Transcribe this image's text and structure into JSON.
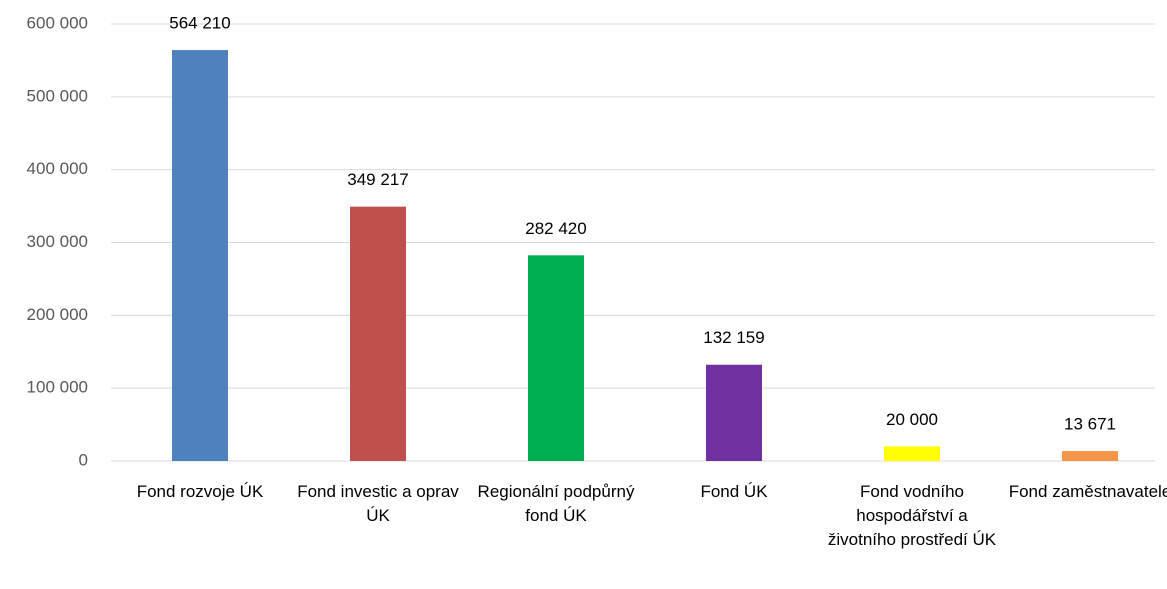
{
  "chart_data": {
    "type": "bar",
    "categories": [
      "Fond rozvoje ÚK",
      "Fond investic a oprav ÚK",
      "Regionální podpůrný fond ÚK",
      "Fond ÚK",
      "Fond vodního hospodářství a životního prostředí ÚK",
      "Fond zaměstnavatele"
    ],
    "values": [
      564210,
      349217,
      282420,
      132159,
      20000,
      13671
    ],
    "value_labels": [
      "564 210",
      "349 217",
      "282 420",
      "132 159",
      "20 000",
      "13 671"
    ],
    "colors": [
      "#4f81bd",
      "#c0504d",
      "#00b050",
      "#7030a0",
      "#ffff00",
      "#f79646"
    ],
    "ylim": [
      0,
      600000
    ],
    "yticks": [
      {
        "value": 0,
        "label": "0"
      },
      {
        "value": 100000,
        "label": "100 000"
      },
      {
        "value": 200000,
        "label": "200 000"
      },
      {
        "value": 300000,
        "label": "300 000"
      },
      {
        "value": 400000,
        "label": "400 000"
      },
      {
        "value": 500000,
        "label": "500 000"
      },
      {
        "value": 600000,
        "label": "600 000"
      }
    ],
    "grid": true
  }
}
